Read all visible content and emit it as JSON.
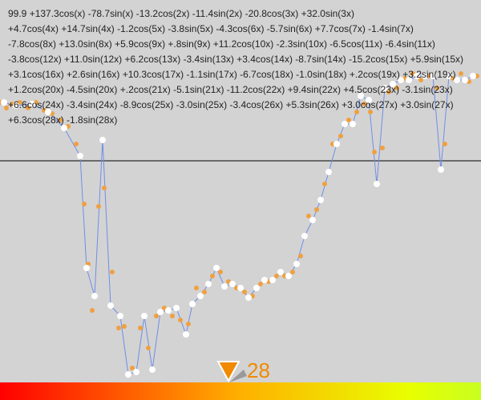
{
  "formula": {
    "lines": [
      "99.9 +137.3cos(x) -78.7sin(x) -13.2cos(2x) -11.4sin(2x) -20.8cos(3x) +32.0sin(3x)",
      "+4.7cos(4x) +14.7sin(4x) -1.2cos(5x) -3.8sin(5x) -4.3cos(6x) -5.7sin(6x) +7.7cos(7x) -1.4sin(7x)",
      "-7.8cos(8x) +13.0sin(8x) +5.9cos(9x) +.8sin(9x) +11.2cos(10x) -2.3sin(10x) -6.5cos(11x) -6.4sin(11x)",
      "-3.8cos(12x) +11.0sin(12x) +6.2cos(13x) -3.4sin(13x) +3.4cos(14x) -8.7sin(14x) -15.2cos(15x) +5.9sin(15x)",
      "+3.1cos(16x) +2.6sin(16x) +10.3cos(17x) -1.1sin(17x) -6.7cos(18x) -1.0sin(18x) +.2cos(19x) +3.2sin(19x)",
      "+1.2cos(20x) -4.5sin(20x) +.2cos(21x) -5.1sin(21x) -11.2cos(22x) +9.4sin(22x) +4.5cos(23x) -3.1sin(23x)",
      "+6.6cos(24x) -3.4sin(24x) -8.9cos(25x) -3.0sin(25x) -3.4cos(26x) +5.3sin(26x) +3.0cos(27x) +3.0sin(27x)",
      "+6.3cos(28x) -1.8sin(28x)"
    ]
  },
  "slider": {
    "value": 28
  },
  "chart_data": {
    "type": "line",
    "xlim": [
      0,
      600
    ],
    "ylim": [
      -299,
      201
    ],
    "series": [
      {
        "color": "#ffffff",
        "line_color": "#6f8fe8",
        "x": [
          5,
          20,
          40,
          60,
          80,
          100,
          108,
          118,
          128,
          138,
          150,
          160,
          170,
          180,
          190,
          200,
          210,
          220,
          232,
          240,
          250,
          260,
          270,
          280,
          290,
          300,
          310,
          320,
          330,
          340,
          350,
          360,
          370,
          380,
          390,
          400,
          410,
          420,
          430,
          440,
          450,
          460,
          470,
          480,
          490,
          500,
          510,
          520,
          530,
          540,
          550,
          560,
          570,
          580,
          590
        ],
        "values": [
          73,
          69,
          71,
          61,
          41,
          6,
          -134,
          -169,
          26,
          -181,
          -194,
          -267,
          -264,
          -194,
          -261,
          -189,
          -187,
          -184,
          -217,
          -179,
          -169,
          -154,
          -134,
          -157,
          -154,
          -159,
          -171,
          -159,
          -149,
          -149,
          -139,
          -144,
          -129,
          -94,
          -74,
          -49,
          -14,
          21,
          46,
          46,
          81,
          76,
          -29,
          91,
          96,
          101,
          101,
          106,
          106,
          106,
          -11,
          106,
          101,
          101,
          106
        ]
      },
      {
        "color": "#f0a040",
        "x": [
          0,
          8,
          15,
          25,
          35,
          45,
          55,
          65,
          75,
          85,
          95,
          105,
          110,
          115,
          123,
          130,
          140,
          148,
          155,
          165,
          175,
          185,
          195,
          205,
          215,
          225,
          235,
          245,
          255,
          265,
          275,
          285,
          295,
          305,
          315,
          325,
          335,
          345,
          355,
          365,
          375,
          385,
          395,
          405,
          415,
          425,
          435,
          445,
          455,
          462,
          467,
          477,
          485,
          495,
          505,
          515,
          525,
          535,
          545,
          555,
          565,
          575,
          585,
          595
        ],
        "values": [
          73,
          66,
          71,
          73,
          66,
          73,
          63,
          59,
          51,
          43,
          21,
          -54,
          -129,
          -187,
          -57,
          -34,
          -139,
          -209,
          -207,
          -259,
          -209,
          -234,
          -194,
          -184,
          -194,
          -199,
          -204,
          -159,
          -164,
          -144,
          -139,
          -151,
          -159,
          -164,
          -169,
          -154,
          -151,
          -144,
          -144,
          -139,
          -119,
          -69,
          -61,
          -29,
          21,
          31,
          51,
          61,
          71,
          61,
          11,
          16,
          86,
          91,
          103,
          109,
          101,
          106,
          91,
          21,
          103,
          109,
          99,
          106
        ]
      }
    ]
  }
}
